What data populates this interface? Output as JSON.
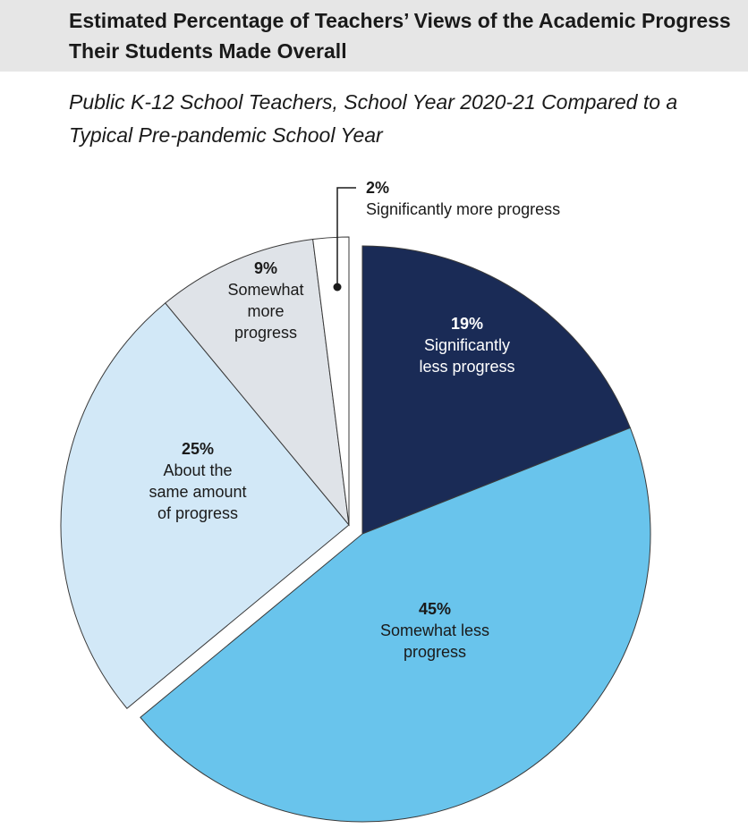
{
  "title": "Estimated Percentage of Teachers’ Views of the Academic Progress Their Students Made Overall",
  "subtitle": "Public K-12 School Teachers, School Year 2020-21 Compared to a Typical Pre-pandemic School Year",
  "chart_data": {
    "type": "pie",
    "title": "Estimated Percentage of Teachers’ Views of the Academic Progress Their Students Made Overall",
    "subtitle": "Public K-12 School Teachers, School Year 2020-21 Compared to a Typical Pre-pandemic School Year",
    "unit": "%",
    "slices": [
      {
        "label": "Significantly less progress",
        "value": 19,
        "pct_text": "19%",
        "color": "#1a2b56",
        "text_color": "#ffffff",
        "lines": [
          "Significantly",
          "less progress"
        ]
      },
      {
        "label": "Somewhat less progress",
        "value": 45,
        "pct_text": "45%",
        "color": "#69c4ec",
        "text_color": "#1a1a1a",
        "lines": [
          "Somewhat less",
          "progress"
        ]
      },
      {
        "label": "About the same amount of progress",
        "value": 25,
        "pct_text": "25%",
        "color": "#d2e8f7",
        "text_color": "#1a1a1a",
        "lines": [
          "About the",
          "same amount",
          "of progress"
        ]
      },
      {
        "label": "Somewhat more progress",
        "value": 9,
        "pct_text": "9%",
        "color": "#dfe3e8",
        "text_color": "#1a1a1a",
        "lines": [
          "Somewhat",
          "more",
          "progress"
        ]
      },
      {
        "label": "Significantly more progress",
        "value": 2,
        "pct_text": "2%",
        "color": "#ffffff",
        "text_color": "#1a1a1a",
        "lines": [
          "Significantly more progress"
        ],
        "callout": true
      }
    ]
  }
}
